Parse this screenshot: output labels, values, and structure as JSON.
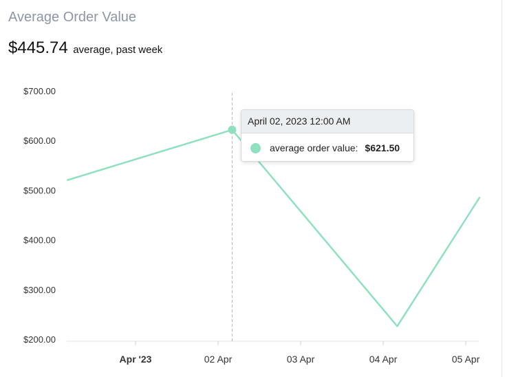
{
  "card": {
    "title": "Average Order Value"
  },
  "summary": {
    "value": "$445.74",
    "caption": "average, past week"
  },
  "tooltip": {
    "header": "April 02, 2023 12:00 AM",
    "series_label": "average order value:",
    "value": "$621.50"
  },
  "colors": {
    "series": "#8fe0bf",
    "title": "#8e95a5"
  },
  "chart_data": {
    "type": "line",
    "title": "",
    "xlabel": "",
    "ylabel": "",
    "ylim": [
      200,
      700
    ],
    "yticks": [
      200,
      300,
      400,
      500,
      600,
      700
    ],
    "ytick_labels": [
      "$200.00",
      "$300.00",
      "$400.00",
      "$500.00",
      "$600.00",
      "$700.00"
    ],
    "xticks": [
      {
        "label": "Apr '23",
        "t": 1.0,
        "bold": true
      },
      {
        "label": "02 Apr",
        "t": 2.0,
        "bold": false
      },
      {
        "label": "03 Apr",
        "t": 3.0,
        "bold": false
      },
      {
        "label": "04 Apr",
        "t": 4.0,
        "bold": false
      },
      {
        "label": "05 Apr",
        "t": 5.0,
        "bold": false
      }
    ],
    "series": [
      {
        "points": [
          {
            "x": 0.17,
            "y": 520
          },
          {
            "x": 2.17,
            "y": 621.5
          },
          {
            "x": 4.17,
            "y": 226
          },
          {
            "x": 5.17,
            "y": 486
          }
        ]
      }
    ],
    "highlight": {
      "x": 2.17,
      "y": 621.5
    },
    "grid": false
  }
}
